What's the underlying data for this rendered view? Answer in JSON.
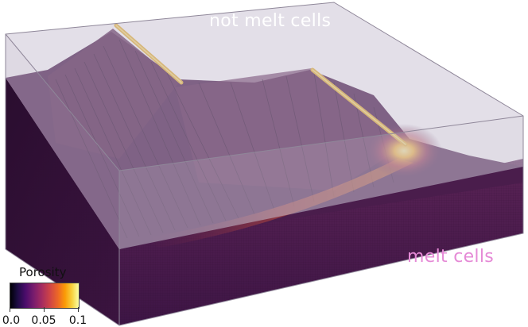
{
  "annotations": {
    "top_label": "not melt cells",
    "bottom_label": "melt cells"
  },
  "colorbar": {
    "title": "Porosity",
    "ticks": [
      "0.0",
      "0.05",
      "0.1"
    ],
    "colormap": "inferno"
  },
  "colors": {
    "domain": "#4f2050",
    "domain_dark": "#2f0f33",
    "transparent_box": "#b9b0c4",
    "not_melt_label": "#ffffff",
    "melt_label": "#e58ad6",
    "high_porosity": "#f7c23a"
  }
}
